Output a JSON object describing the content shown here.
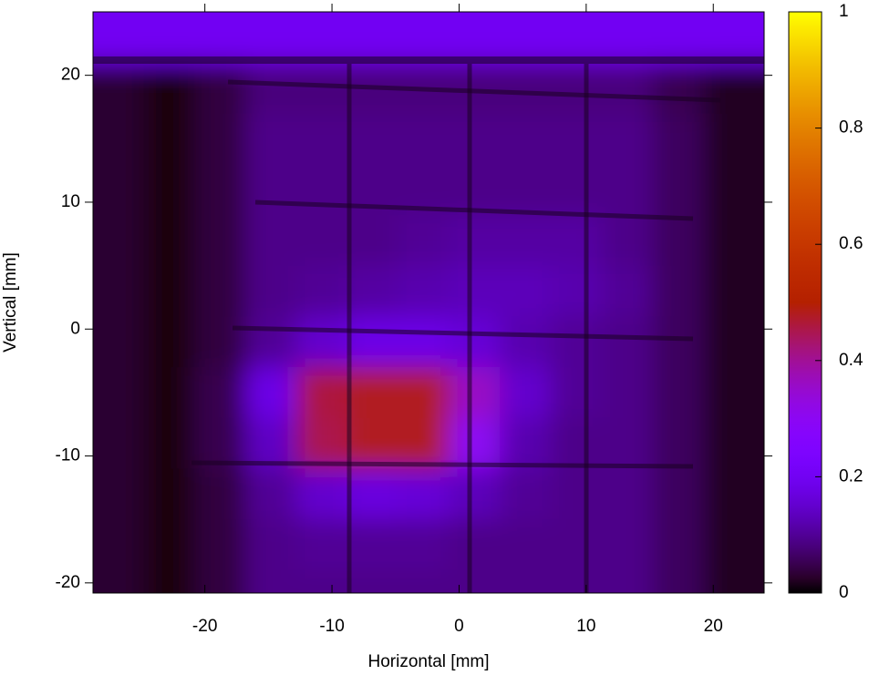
{
  "chart_data": {
    "type": "heatmap",
    "xlabel": "Horizontal [mm]",
    "ylabel": "Vertical [mm]",
    "palette": "gnuplot",
    "x": [
      -26.8,
      -22.8,
      -18.8,
      -14.8,
      -10.8,
      -6.8,
      -2.8,
      1.2,
      5.2,
      9.2,
      13.2,
      17.2,
      21.2
    ],
    "y": [
      23,
      19,
      15,
      11,
      7,
      3,
      -1,
      -5,
      -9,
      -13,
      -17,
      -21
    ],
    "z": [
      [
        0.2,
        0.2,
        0.2,
        0.2,
        0.2,
        0.2,
        0.2,
        0.2,
        0.2,
        0.2,
        0.2,
        0.2,
        0.2
      ],
      [
        0.03,
        0.01,
        0.04,
        0.08,
        0.08,
        0.08,
        0.08,
        0.08,
        0.08,
        0.08,
        0.08,
        0.05,
        0.02
      ],
      [
        0.03,
        0.01,
        0.04,
        0.09,
        0.09,
        0.09,
        0.09,
        0.09,
        0.09,
        0.09,
        0.09,
        0.06,
        0.02
      ],
      [
        0.03,
        0.01,
        0.04,
        0.09,
        0.09,
        0.09,
        0.09,
        0.09,
        0.09,
        0.09,
        0.09,
        0.06,
        0.02
      ],
      [
        0.03,
        0.01,
        0.04,
        0.09,
        0.09,
        0.09,
        0.1,
        0.11,
        0.11,
        0.11,
        0.09,
        0.06,
        0.02
      ],
      [
        0.03,
        0.01,
        0.04,
        0.09,
        0.1,
        0.11,
        0.12,
        0.13,
        0.13,
        0.12,
        0.1,
        0.06,
        0.02
      ],
      [
        0.03,
        0.01,
        0.04,
        0.1,
        0.15,
        0.18,
        0.18,
        0.16,
        0.12,
        0.1,
        0.09,
        0.06,
        0.02
      ],
      [
        0.03,
        0.01,
        0.05,
        0.18,
        0.46,
        0.48,
        0.48,
        0.36,
        0.15,
        0.1,
        0.09,
        0.06,
        0.02
      ],
      [
        0.03,
        0.01,
        0.05,
        0.14,
        0.45,
        0.48,
        0.48,
        0.3,
        0.12,
        0.09,
        0.09,
        0.06,
        0.02
      ],
      [
        0.03,
        0.01,
        0.04,
        0.1,
        0.15,
        0.17,
        0.16,
        0.13,
        0.1,
        0.09,
        0.09,
        0.06,
        0.02
      ],
      [
        0.03,
        0.01,
        0.04,
        0.09,
        0.1,
        0.1,
        0.1,
        0.09,
        0.09,
        0.09,
        0.09,
        0.06,
        0.02
      ],
      [
        0.03,
        0.01,
        0.04,
        0.09,
        0.09,
        0.09,
        0.09,
        0.09,
        0.09,
        0.09,
        0.09,
        0.06,
        0.02
      ]
    ],
    "xlim": [
      -28.8,
      24
    ],
    "ylim": [
      -20.8,
      25
    ],
    "xticks": [
      -20,
      -10,
      0,
      10,
      20
    ],
    "yticks": [
      -20,
      -10,
      0,
      10,
      20
    ],
    "zlim": [
      0,
      1
    ],
    "zticks": [
      0,
      0.2,
      0.4,
      0.6,
      0.8,
      1
    ]
  }
}
